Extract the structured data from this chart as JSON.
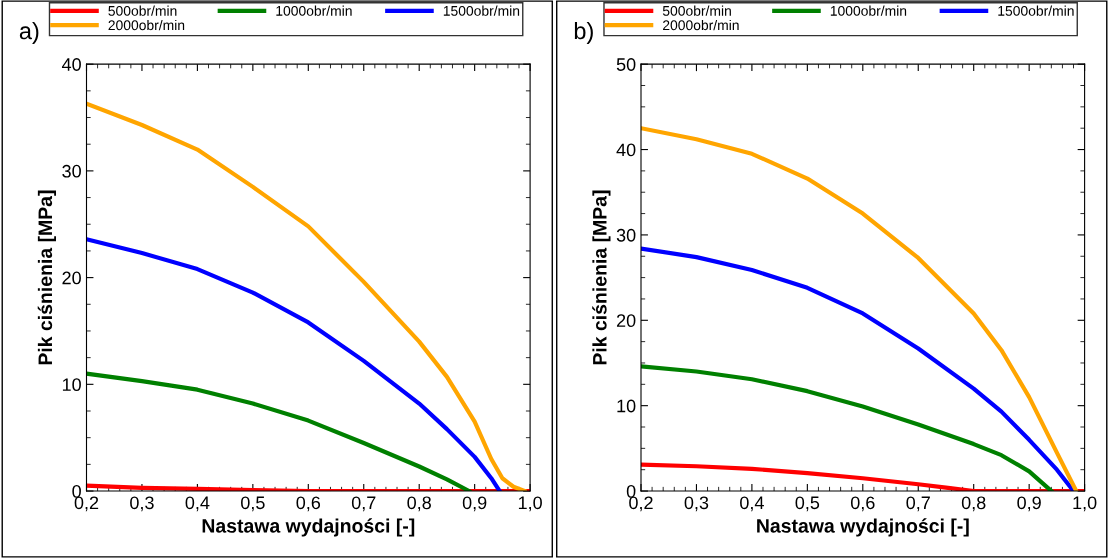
{
  "chart_data": [
    {
      "type": "line",
      "title": "a)",
      "xlabel": "Nastawa wydajności [-]",
      "ylabel": "Pik ciśnienia [MPa]",
      "legend": "top",
      "grid": false,
      "marker": "none",
      "line_style": "solid",
      "xlim": [
        0.2,
        1.0
      ],
      "ylim": [
        0,
        40
      ],
      "xticks": [
        {
          "value": 0.2,
          "label": "0,2"
        },
        {
          "value": 0.3,
          "label": "0,3"
        },
        {
          "value": 0.4,
          "label": "0,4"
        },
        {
          "value": 0.5,
          "label": "0,5"
        },
        {
          "value": 0.6,
          "label": "0,6"
        },
        {
          "value": 0.7,
          "label": "0,7"
        },
        {
          "value": 0.8,
          "label": "0,8"
        },
        {
          "value": 0.9,
          "label": "0,9"
        },
        {
          "value": 1.0,
          "label": "1,0"
        }
      ],
      "yticks": [
        0,
        10,
        20,
        30,
        40
      ],
      "series": [
        {
          "name": "500obr/min",
          "color": "#ff0000",
          "x": [
            0.2,
            0.3,
            0.4,
            0.5,
            0.6,
            1.0
          ],
          "values": [
            0.5,
            0.3,
            0.2,
            0.1,
            0,
            0
          ]
        },
        {
          "name": "1000obr/min",
          "color": "#008000",
          "x": [
            0.2,
            0.3,
            0.4,
            0.5,
            0.6,
            0.7,
            0.8,
            0.85,
            0.89
          ],
          "values": [
            11.0,
            10.3,
            9.5,
            8.2,
            6.6,
            4.5,
            2.3,
            1.1,
            0
          ]
        },
        {
          "name": "1500obr/min",
          "color": "#0000ff",
          "x": [
            0.2,
            0.3,
            0.4,
            0.5,
            0.6,
            0.7,
            0.8,
            0.85,
            0.9,
            0.93,
            0.945
          ],
          "values": [
            23.6,
            22.3,
            20.8,
            18.6,
            15.8,
            12.2,
            8.2,
            5.8,
            3.2,
            1.2,
            0
          ]
        },
        {
          "name": "2000obr/min",
          "color": "#ffa500",
          "x": [
            0.2,
            0.3,
            0.4,
            0.5,
            0.6,
            0.7,
            0.8,
            0.85,
            0.9,
            0.93,
            0.95,
            0.97,
            0.99
          ],
          "values": [
            36.3,
            34.3,
            32.0,
            28.5,
            24.8,
            19.6,
            14.0,
            10.7,
            6.5,
            3.0,
            1.2,
            0.4,
            0
          ]
        }
      ]
    },
    {
      "type": "line",
      "title": "b)",
      "xlabel": "Nastawa wydajności [-]",
      "ylabel": "Pik ciśnienia [MPa]",
      "legend": "top",
      "grid": false,
      "marker": "none",
      "line_style": "solid",
      "xlim": [
        0.2,
        1.0
      ],
      "ylim": [
        0,
        50
      ],
      "xticks": [
        {
          "value": 0.2,
          "label": "0,2"
        },
        {
          "value": 0.3,
          "label": "0,3"
        },
        {
          "value": 0.4,
          "label": "0,4"
        },
        {
          "value": 0.5,
          "label": "0,5"
        },
        {
          "value": 0.6,
          "label": "0,6"
        },
        {
          "value": 0.7,
          "label": "0,7"
        },
        {
          "value": 0.8,
          "label": "0,8"
        },
        {
          "value": 0.9,
          "label": "0,9"
        },
        {
          "value": 1.0,
          "label": "1,0"
        }
      ],
      "yticks": [
        0,
        10,
        20,
        30,
        40,
        50
      ],
      "series": [
        {
          "name": "500obr/min",
          "color": "#ff0000",
          "x": [
            0.2,
            0.3,
            0.4,
            0.5,
            0.6,
            0.7,
            0.75,
            0.8,
            1.0
          ],
          "values": [
            3.1,
            2.9,
            2.6,
            2.1,
            1.5,
            0.8,
            0.4,
            0,
            0
          ]
        },
        {
          "name": "1000obr/min",
          "color": "#008000",
          "x": [
            0.2,
            0.3,
            0.4,
            0.5,
            0.6,
            0.7,
            0.8,
            0.85,
            0.9,
            0.94
          ],
          "values": [
            14.6,
            14.0,
            13.1,
            11.7,
            9.9,
            7.8,
            5.5,
            4.2,
            2.3,
            0
          ]
        },
        {
          "name": "1500obr/min",
          "color": "#0000ff",
          "x": [
            0.2,
            0.3,
            0.4,
            0.5,
            0.6,
            0.7,
            0.8,
            0.85,
            0.9,
            0.95,
            0.98
          ],
          "values": [
            28.4,
            27.4,
            25.9,
            23.8,
            20.8,
            16.7,
            12.0,
            9.3,
            6.0,
            2.5,
            0
          ]
        },
        {
          "name": "2000obr/min",
          "color": "#ffa500",
          "x": [
            0.2,
            0.3,
            0.4,
            0.5,
            0.6,
            0.7,
            0.8,
            0.85,
            0.9,
            0.95,
            0.985
          ],
          "values": [
            42.5,
            41.2,
            39.5,
            36.6,
            32.5,
            27.3,
            20.8,
            16.5,
            11.0,
            4.5,
            0
          ]
        }
      ]
    }
  ]
}
